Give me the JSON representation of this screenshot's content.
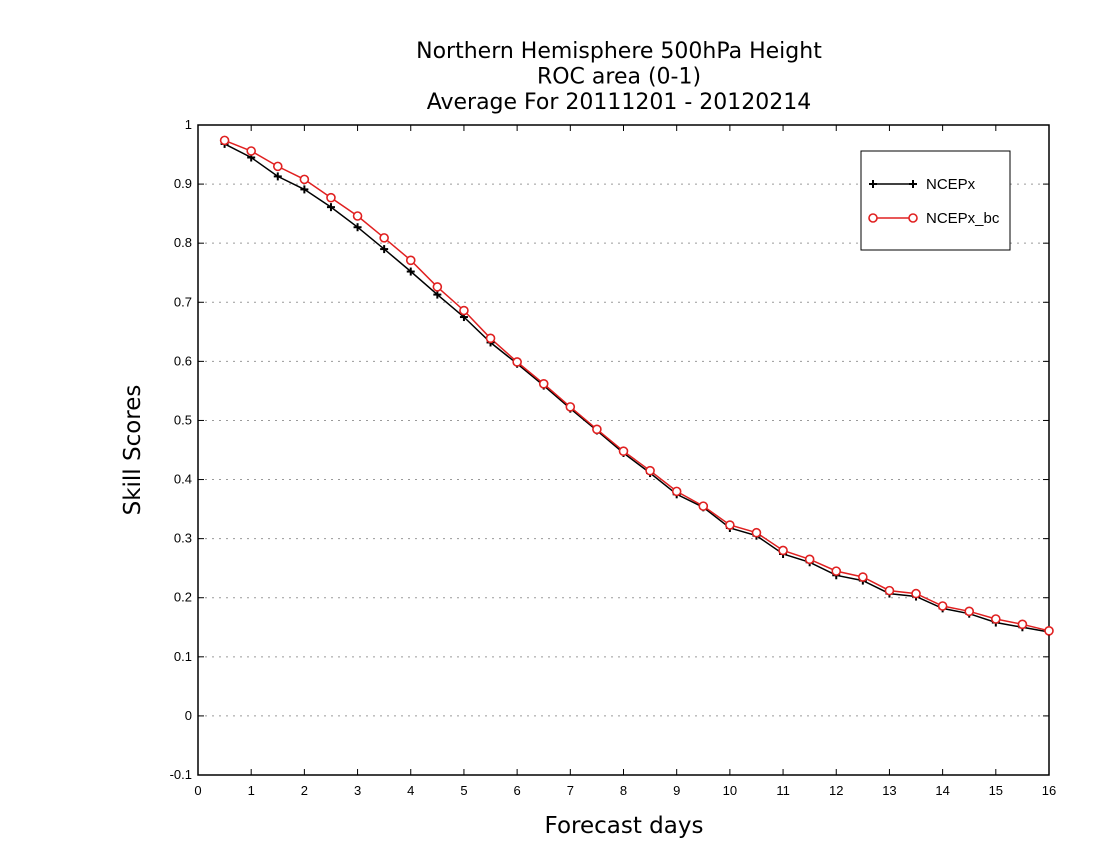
{
  "chart_data": {
    "type": "line",
    "title_lines": [
      "Northern Hemisphere 500hPa Height",
      "ROC area (0-1)",
      "Average For 20111201 - 20120214"
    ],
    "xlabel": "Forecast days",
    "ylabel": "Skill Scores",
    "xlim": [
      0,
      16
    ],
    "ylim": [
      -0.1,
      1
    ],
    "xticks": [
      "0",
      "1",
      "2",
      "3",
      "4",
      "5",
      "6",
      "7",
      "8",
      "9",
      "10",
      "11",
      "12",
      "13",
      "14",
      "15",
      "16"
    ],
    "yticks": [
      "-0.1",
      "0",
      "0.1",
      "0.2",
      "0.3",
      "0.4",
      "0.5",
      "0.6",
      "0.7",
      "0.8",
      "0.9",
      "1"
    ],
    "grid": "horizontal dotted",
    "legend_position": "top-right",
    "x": [
      0.5,
      1,
      1.5,
      2,
      2.5,
      3,
      3.5,
      4,
      4.5,
      5,
      5.5,
      6,
      6.5,
      7,
      7.5,
      8,
      8.5,
      9,
      9.5,
      10,
      10.5,
      11,
      11.5,
      12,
      12.5,
      13,
      13.5,
      14,
      14.5,
      15,
      15.5,
      16
    ],
    "series": [
      {
        "name": "NCEPx",
        "color": "#000000",
        "marker": "plus",
        "values": [
          0.968,
          0.945,
          0.913,
          0.891,
          0.861,
          0.827,
          0.79,
          0.752,
          0.713,
          0.675,
          0.632,
          0.596,
          0.559,
          0.52,
          0.483,
          0.445,
          0.411,
          0.375,
          0.353,
          0.318,
          0.305,
          0.274,
          0.26,
          0.238,
          0.229,
          0.207,
          0.202,
          0.182,
          0.173,
          0.158,
          0.15,
          0.142
        ]
      },
      {
        "name": "NCEPx_bc",
        "color": "#e02020",
        "marker": "circle",
        "values": [
          0.974,
          0.956,
          0.93,
          0.908,
          0.877,
          0.846,
          0.809,
          0.771,
          0.726,
          0.686,
          0.639,
          0.599,
          0.562,
          0.523,
          0.485,
          0.448,
          0.415,
          0.38,
          0.355,
          0.323,
          0.31,
          0.28,
          0.265,
          0.245,
          0.235,
          0.212,
          0.207,
          0.186,
          0.177,
          0.164,
          0.155,
          0.144
        ]
      }
    ]
  }
}
